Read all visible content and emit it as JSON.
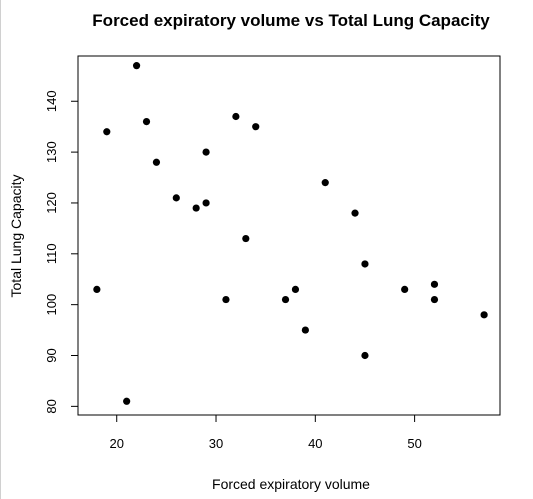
{
  "chart_data": {
    "type": "scatter",
    "title": "Forced expiratory volume vs Total Lung Capacity",
    "xlabel": "Forced expiratory volume",
    "ylabel": "Total Lung Capacity",
    "xlim": [
      16.1,
      58.6
    ],
    "ylim": [
      78.3,
      148.9
    ],
    "x_ticks": [
      20,
      30,
      40,
      50
    ],
    "y_ticks": [
      80,
      90,
      100,
      110,
      120,
      130,
      140
    ],
    "grid": false,
    "legend": "none",
    "point_color": "#000000",
    "points": [
      {
        "x": 18,
        "y": 103
      },
      {
        "x": 19,
        "y": 134
      },
      {
        "x": 21,
        "y": 81
      },
      {
        "x": 22,
        "y": 147
      },
      {
        "x": 23,
        "y": 136
      },
      {
        "x": 24,
        "y": 128
      },
      {
        "x": 26,
        "y": 121
      },
      {
        "x": 28,
        "y": 119
      },
      {
        "x": 29,
        "y": 130
      },
      {
        "x": 29,
        "y": 120
      },
      {
        "x": 31,
        "y": 101
      },
      {
        "x": 32,
        "y": 137
      },
      {
        "x": 33,
        "y": 113
      },
      {
        "x": 34,
        "y": 135
      },
      {
        "x": 37,
        "y": 101
      },
      {
        "x": 38,
        "y": 103
      },
      {
        "x": 39,
        "y": 95
      },
      {
        "x": 41,
        "y": 124
      },
      {
        "x": 44,
        "y": 118
      },
      {
        "x": 45,
        "y": 108
      },
      {
        "x": 45,
        "y": 90
      },
      {
        "x": 49,
        "y": 103
      },
      {
        "x": 52,
        "y": 104
      },
      {
        "x": 52,
        "y": 101
      },
      {
        "x": 57,
        "y": 98
      }
    ]
  }
}
